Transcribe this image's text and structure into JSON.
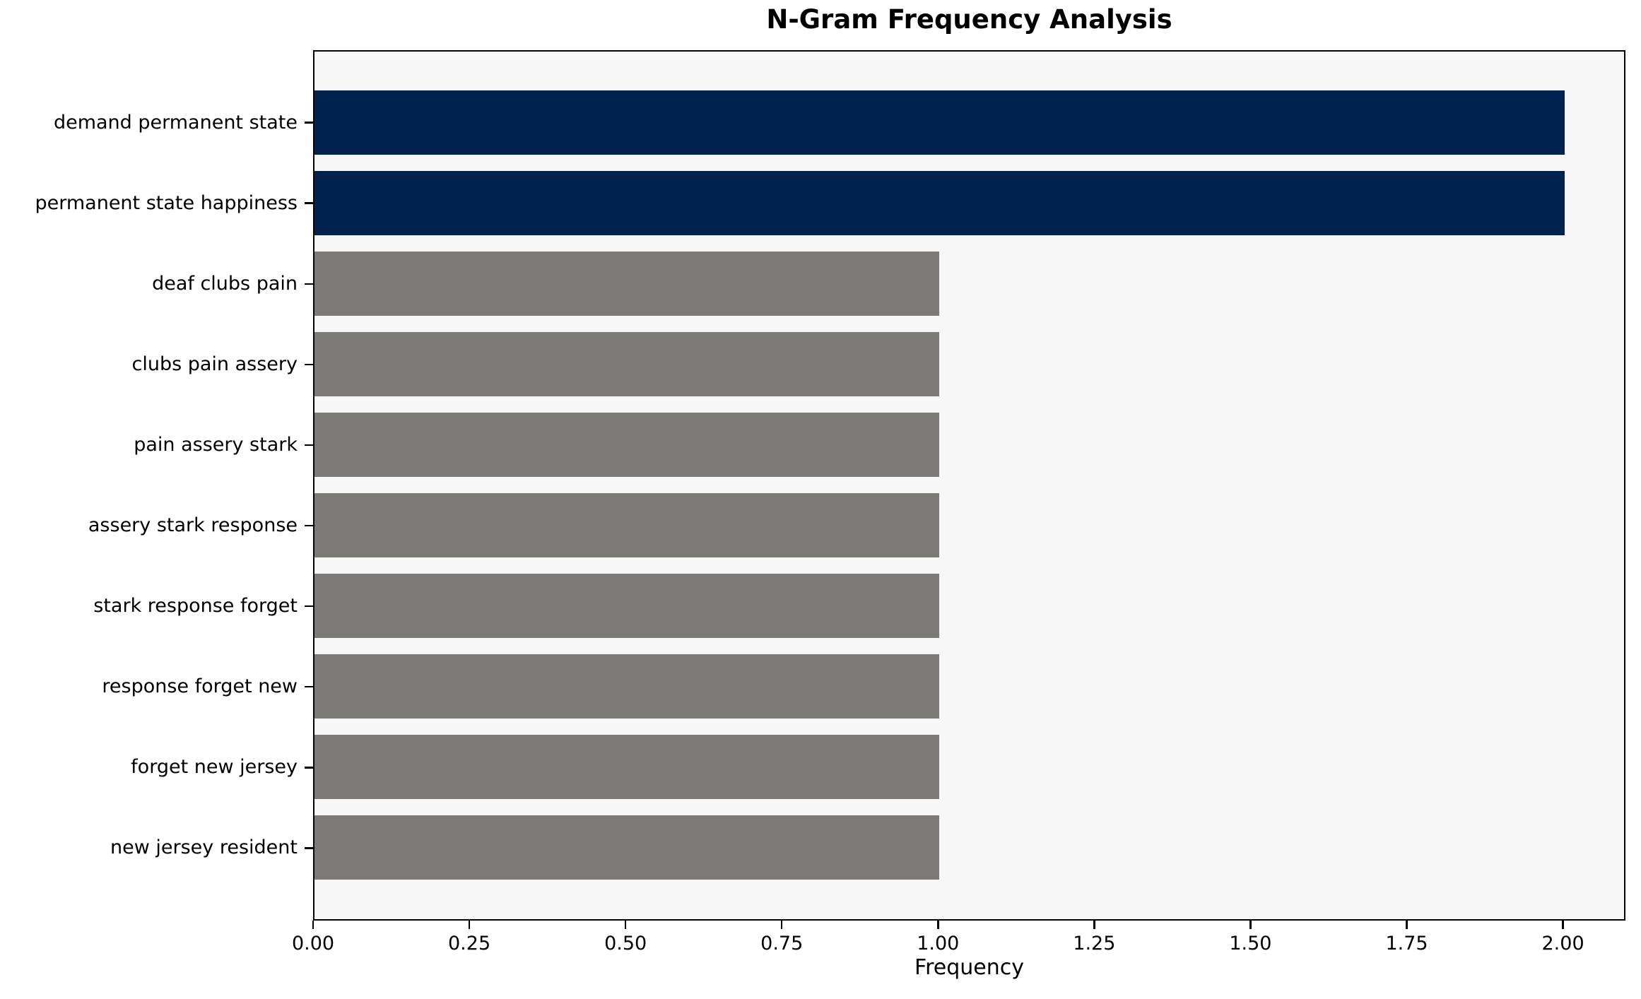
{
  "chart_data": {
    "type": "bar",
    "orientation": "horizontal",
    "title": "N-Gram Frequency Analysis",
    "xlabel": "Frequency",
    "ylabel": "",
    "categories": [
      "demand permanent state",
      "permanent state happiness",
      "deaf clubs pain",
      "clubs pain assery",
      "pain assery stark",
      "assery stark response",
      "stark response forget",
      "response forget new",
      "forget new jersey",
      "new jersey resident"
    ],
    "values": [
      2,
      2,
      1,
      1,
      1,
      1,
      1,
      1,
      1,
      1
    ],
    "colors": [
      "#00224e",
      "#00224e",
      "#7c7b77",
      "#7c7b77",
      "#7c7b77",
      "#7c7b77",
      "#7c7b77",
      "#7c7b77",
      "#7c7b77",
      "#7c7b77"
    ],
    "xlim": [
      0,
      2.1
    ],
    "xticks": [
      0,
      0.25,
      0.5,
      0.75,
      1.0,
      1.25,
      1.5,
      1.75,
      2.0
    ],
    "xtick_labels": [
      "0.00",
      "0.25",
      "0.50",
      "0.75",
      "1.00",
      "1.25",
      "1.50",
      "1.75",
      "2.00"
    ],
    "grid": false,
    "legend_position": "none",
    "plot_background": "#f8f7f7",
    "bar_colors": {
      "highlight": "#00224e",
      "default": "#7c7b77"
    },
    "bar_height_fraction": 0.8
  }
}
